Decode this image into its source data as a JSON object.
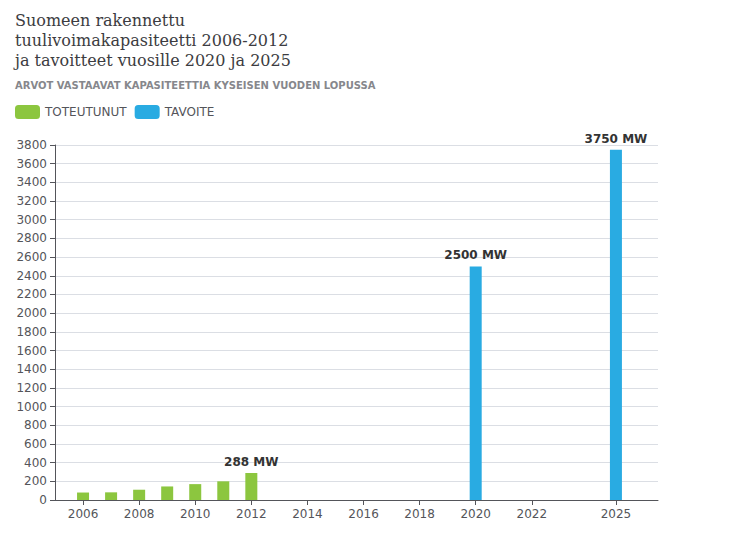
{
  "chart_data": {
    "type": "bar",
    "title": "Suomeen rakennettu\ntuulivoimakapasiteetti 2006-2012\nja tavoitteet vuosille 2020 ja 2025",
    "subtitle": "ARVOT VASTAAVAT KAPASITEETTIA KYSEISEN VUODEN LOPUSSA",
    "series": [
      {
        "name": "TOTEUTUNUT",
        "color": "#8cc63f",
        "x": [
          2006,
          2007,
          2008,
          2009,
          2010,
          2011,
          2012
        ],
        "values": [
          80,
          82,
          110,
          145,
          170,
          200,
          288
        ]
      },
      {
        "name": "TAVOITE",
        "color": "#29abe2",
        "x": [
          2020,
          2025
        ],
        "values": [
          2500,
          3750
        ]
      }
    ],
    "xlim": [
      2005,
      2026.5
    ],
    "xticks": [
      2006,
      2008,
      2010,
      2012,
      2014,
      2016,
      2018,
      2020,
      2022,
      2025
    ],
    "ylim": [
      0,
      3800
    ],
    "yticks": [
      0,
      200,
      400,
      600,
      800,
      1000,
      1200,
      1400,
      1600,
      1800,
      2000,
      2200,
      2400,
      2600,
      2800,
      3000,
      3200,
      3400,
      3600,
      3800
    ],
    "grid": true,
    "legend": "upper left",
    "annotations": [
      {
        "text": "288 MW",
        "x": 2012,
        "y": 288
      },
      {
        "text": "2500 MW",
        "x": 2020,
        "y": 2500
      },
      {
        "text": "3750 MW",
        "x": 2025,
        "y": 3750
      }
    ]
  }
}
